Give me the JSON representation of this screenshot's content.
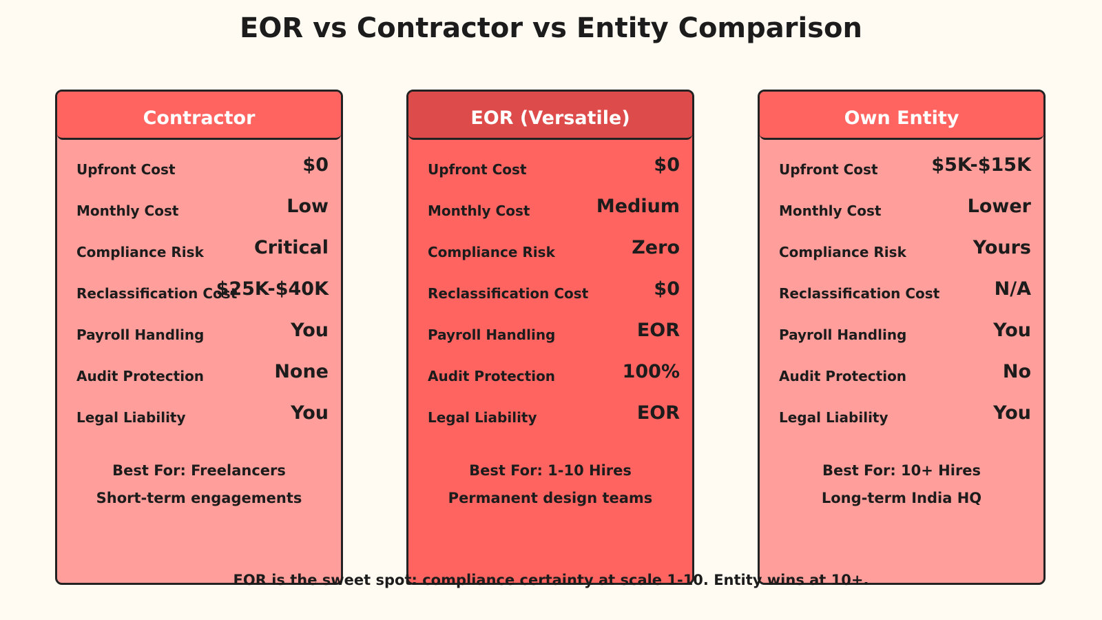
{
  "title": "EOR vs Contractor vs Entity Comparison",
  "colors": {
    "background": "#FFFBF3",
    "side_card": "#FF9E9A",
    "middle_card": "#FF6461",
    "side_header": "#FF6461",
    "middle_header": "#DD4B4A",
    "border": "#222222"
  },
  "cards": [
    {
      "header": "Contractor",
      "rows": [
        {
          "label": "Upfront Cost",
          "value": "$0"
        },
        {
          "label": "Monthly Cost",
          "value": "Low"
        },
        {
          "label": "Compliance Risk",
          "value": "Critical"
        },
        {
          "label": "Reclassification Cost",
          "value": "$25K-$40K"
        },
        {
          "label": "Payroll Handling",
          "value": "You"
        },
        {
          "label": "Audit Protection",
          "value": "None"
        },
        {
          "label": "Legal Liability",
          "value": "You"
        }
      ],
      "best_for": "Best For: Freelancers",
      "best_detail": "Short-term engagements"
    },
    {
      "header": "EOR (Versatile)",
      "rows": [
        {
          "label": "Upfront Cost",
          "value": "$0"
        },
        {
          "label": "Monthly Cost",
          "value": "Medium"
        },
        {
          "label": "Compliance Risk",
          "value": "Zero"
        },
        {
          "label": "Reclassification Cost",
          "value": "$0"
        },
        {
          "label": "Payroll Handling",
          "value": "EOR"
        },
        {
          "label": "Audit Protection",
          "value": "100%"
        },
        {
          "label": "Legal Liability",
          "value": "EOR"
        }
      ],
      "best_for": "Best For: 1-10 Hires",
      "best_detail": "Permanent design teams"
    },
    {
      "header": "Own Entity",
      "rows": [
        {
          "label": "Upfront Cost",
          "value": "$5K-$15K"
        },
        {
          "label": "Monthly Cost",
          "value": "Lower"
        },
        {
          "label": "Compliance Risk",
          "value": "Yours"
        },
        {
          "label": "Reclassification Cost",
          "value": "N/A"
        },
        {
          "label": "Payroll Handling",
          "value": "You"
        },
        {
          "label": "Audit Protection",
          "value": "No"
        },
        {
          "label": "Legal Liability",
          "value": "You"
        }
      ],
      "best_for": "Best For: 10+ Hires",
      "best_detail": "Long-term India HQ"
    }
  ],
  "footer": "EOR is the sweet spot: compliance certainty at scale 1-10. Entity wins at 10+."
}
